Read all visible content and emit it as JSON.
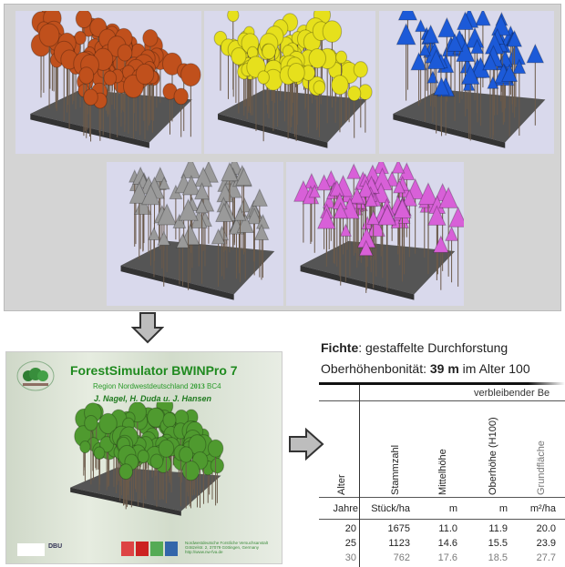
{
  "scenes": [
    {
      "crown": "sphere",
      "color": "#c0501c"
    },
    {
      "crown": "sphere",
      "color": "#e6e01c"
    },
    {
      "crown": "cone",
      "color": "#1c5ad8"
    },
    {
      "crown": "cone",
      "color": "#9a9a9a"
    },
    {
      "crown": "cone",
      "color": "#d860d8"
    }
  ],
  "simulator": {
    "title": "ForestSimulator BWINPro 7",
    "region": "Region Nordwestdeutschland",
    "year": "2013",
    "code": "BC4",
    "authors": "J. Nagel, H. Duda u. J. Hansen",
    "logo_dbu": "DBU",
    "institute": [
      "Nordwestdeutsche Forstliche Versuchsanstalt",
      "Grätzelstr. 2, 37079 Göttingen, Germany",
      "http://www.nw-fva.de"
    ]
  },
  "table": {
    "species": "Fichte",
    "treatment": ": gestaffelte Durchforstung",
    "site_label": "Oberhöhenbonität: ",
    "site_value": "39 m",
    "site_suffix": " im Alter 100",
    "group_header": "verbleibender Be",
    "columns": [
      "Alter",
      "Stammzahl",
      "Mittelhöhe",
      "Oberhöhe (H100)",
      "Grundfläche"
    ],
    "units": [
      "Jahre",
      "Stück/ha",
      "m",
      "m",
      "m²/ha"
    ],
    "rows": [
      [
        "20",
        "1675",
        "11.0",
        "11.9",
        "20.0"
      ],
      [
        "25",
        "1123",
        "14.6",
        "15.5",
        "23.9"
      ],
      [
        "30",
        "762",
        "17.6",
        "18.5",
        "27.7"
      ]
    ]
  }
}
